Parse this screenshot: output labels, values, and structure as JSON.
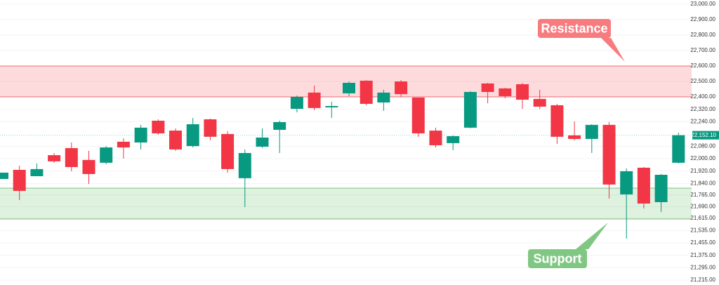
{
  "chart_data": {
    "type": "candlestick",
    "up_color": "#089981",
    "down_color": "#f23645",
    "open": [
      21869,
      21928,
      21887,
      22023,
      22069,
      21992,
      21974,
      22110,
      22105,
      22246,
      22182,
      22082,
      22255,
      22160,
      21874,
      22078,
      22187,
      22323,
      22428,
      22332,
      22423,
      22505,
      22364,
      22500,
      22396,
      22182,
      22101,
      22201,
      22487,
      22455,
      22482,
      22387,
      22346,
      22151,
      22128,
      22219,
      21769,
      21942,
      21719,
      21974
    ],
    "high": [
      21910,
      21955,
      21969,
      22037,
      22105,
      22051,
      22082,
      22132,
      22219,
      22255,
      22196,
      22264,
      22260,
      22178,
      22060,
      22196,
      22246,
      22409,
      22473,
      22369,
      22500,
      22509,
      22446,
      22509,
      22396,
      22201,
      22151,
      22437,
      22491,
      22459,
      22491,
      22446,
      22355,
      22241,
      22223,
      22237,
      21937,
      21946,
      21901,
      22169
    ],
    "low": [
      21869,
      21733,
      21887,
      21974,
      21919,
      21837,
      21964,
      22001,
      22060,
      22155,
      22051,
      22073,
      22119,
      21910,
      21687,
      22069,
      22037,
      22300,
      22314,
      22264,
      22405,
      22346,
      22310,
      22400,
      22142,
      22073,
      22055,
      22196,
      22359,
      22391,
      22323,
      22323,
      22096,
      22119,
      22037,
      21742,
      21483,
      21678,
      21656,
      21969
    ],
    "close": [
      21910,
      21792,
      21933,
      21983,
      21946,
      21901,
      22073,
      22073,
      22201,
      22164,
      22060,
      22223,
      22142,
      21933,
      22037,
      22137,
      22237,
      22400,
      22328,
      22341,
      22491,
      22355,
      22428,
      22418,
      22164,
      22087,
      22146,
      22432,
      22432,
      22405,
      22382,
      22337,
      22142,
      22128,
      22219,
      21833,
      21919,
      21710,
      21896,
      22152.1
    ],
    "ylim": [
      21183,
      23027
    ],
    "yticks": [
      {
        "value": 23000,
        "label": "23,000.00"
      },
      {
        "value": 22900,
        "label": "22,900.00"
      },
      {
        "value": 22800,
        "label": "22,800.00"
      },
      {
        "value": 22700,
        "label": "22,700.00"
      },
      {
        "value": 22600,
        "label": "22,600.00"
      },
      {
        "value": 22500,
        "label": "22,500.00"
      },
      {
        "value": 22400,
        "label": "22,400.00"
      },
      {
        "value": 22320,
        "label": "22,320.00"
      },
      {
        "value": 22240,
        "label": "22,240.00"
      },
      {
        "value": 22080,
        "label": "22,080.00"
      },
      {
        "value": 22000,
        "label": "22,000.00"
      },
      {
        "value": 21920,
        "label": "21,920.00"
      },
      {
        "value": 21840,
        "label": "21,840.00"
      },
      {
        "value": 21765,
        "label": "21,765.00"
      },
      {
        "value": 21690,
        "label": "21,690.00"
      },
      {
        "value": 21615,
        "label": "21,615.00"
      },
      {
        "value": 21535,
        "label": "21,535.00"
      },
      {
        "value": 21455,
        "label": "21,455.00"
      },
      {
        "value": 21375,
        "label": "21,375.00"
      },
      {
        "value": 21295,
        "label": "21,295.00"
      },
      {
        "value": 21215,
        "label": "21,215.00"
      }
    ],
    "last_price": {
      "value": 22152.1,
      "label": "22,152.10"
    },
    "grid": true,
    "zones": [
      {
        "label": "Resistance",
        "range": [
          22400,
          22600
        ],
        "color": "#f23645"
      },
      {
        "label": "Support",
        "range": [
          21610,
          21810
        ],
        "color": "#4caf50"
      }
    ]
  }
}
